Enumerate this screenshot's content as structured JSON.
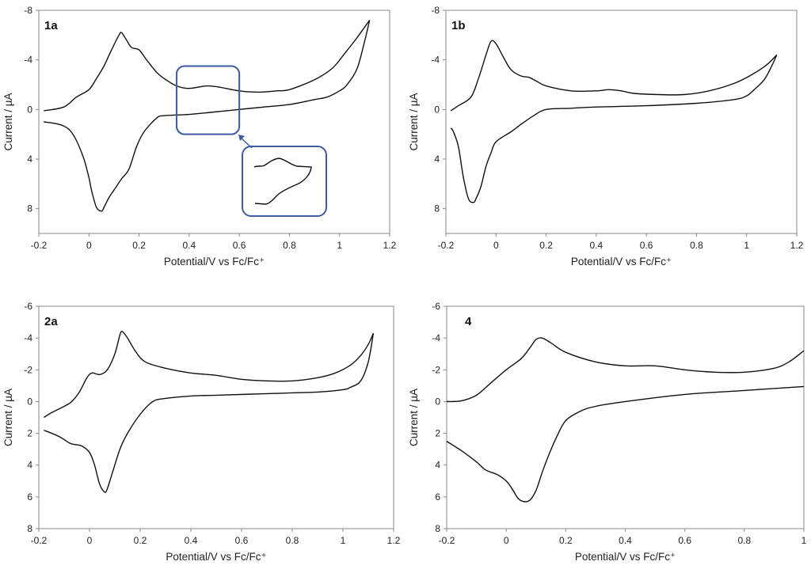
{
  "chart_data": [
    {
      "type": "line",
      "panel_label": "1a",
      "xlabel": "Potential/V vs  Fc/Fc⁺",
      "ylabel": "Current / µA",
      "xlim": [
        -0.2,
        1.2
      ],
      "ylim": [
        -8,
        10
      ],
      "y_inverted": true,
      "xticks": [
        -0.2,
        0,
        0.2,
        0.4,
        0.6,
        0.8,
        1,
        1.2
      ],
      "xtick_labels": [
        "-0.2",
        "0",
        "0.2",
        "0.4",
        "0.6",
        "0.8",
        "1",
        "1.2"
      ],
      "yticks": [
        -8,
        -4,
        0,
        4,
        8
      ],
      "ytick_labels": [
        "-8",
        "-4",
        "0",
        "4",
        "8"
      ],
      "grid": false,
      "inset": true,
      "annotation_color": "#3b5ba5",
      "series": [
        {
          "x": [
            -0.18,
            -0.1,
            -0.05,
            0,
            0.03,
            0.06,
            0.09,
            0.12,
            0.13,
            0.15,
            0.17,
            0.2,
            0.23,
            0.27,
            0.3,
            0.35,
            0.4,
            0.47,
            0.52,
            0.6,
            0.68,
            0.75,
            0.8,
            0.9,
            0.97,
            1.02,
            1.07,
            1.12
          ],
          "y": [
            0.1,
            -0.2,
            -1.0,
            -1.6,
            -2.5,
            -3.5,
            -4.8,
            -6.0,
            -6.2,
            -5.6,
            -5.0,
            -4.8,
            -4.0,
            -3.0,
            -2.5,
            -1.9,
            -1.7,
            -1.9,
            -1.8,
            -1.5,
            -1.4,
            -1.5,
            -1.6,
            -2.4,
            -3.3,
            -4.5,
            -5.8,
            -7.2
          ]
        },
        {
          "x": [
            1.12,
            1.1,
            1.07,
            1.03,
            1.0,
            0.95,
            0.9,
            0.8,
            0.7,
            0.6,
            0.5,
            0.4,
            0.3,
            0.27,
            0.22,
            0.19,
            0.16,
            0.13,
            0.1,
            0.08,
            0.06,
            0.05,
            0.03,
            0.01,
            0,
            -0.02,
            -0.05,
            -0.08,
            -0.12,
            -0.18
          ],
          "y": [
            -7.2,
            -5.5,
            -3.3,
            -2.0,
            -1.5,
            -1.0,
            -0.8,
            -0.4,
            -0.2,
            0,
            0.2,
            0.4,
            0.5,
            0.7,
            1.8,
            3.0,
            4.8,
            5.6,
            6.5,
            7.1,
            7.9,
            8.2,
            7.9,
            6.5,
            5.5,
            4.0,
            2.5,
            1.6,
            1.2,
            1.0
          ]
        }
      ]
    },
    {
      "type": "line",
      "panel_label": "1b",
      "xlabel": "Potential/V vs  Fc/Fc⁺",
      "ylabel": "Current / µA",
      "xlim": [
        -0.2,
        1.2
      ],
      "ylim": [
        -8,
        10
      ],
      "y_inverted": true,
      "xticks": [
        -0.2,
        0,
        0.2,
        0.4,
        0.6,
        0.8,
        1,
        1.2
      ],
      "xtick_labels": [
        "-0.2",
        "0",
        "0.2",
        "0.4",
        "0.6",
        "0.8",
        "1",
        "1.2"
      ],
      "yticks": [
        -8,
        -4,
        0,
        4,
        8
      ],
      "ytick_labels": [
        "-8",
        "-4",
        "0",
        "4",
        "8"
      ],
      "grid": false,
      "series": [
        {
          "x": [
            -0.18,
            -0.15,
            -0.1,
            -0.07,
            -0.04,
            -0.02,
            0,
            0.03,
            0.06,
            0.1,
            0.13,
            0.16,
            0.2,
            0.3,
            0.4,
            0.45,
            0.5,
            0.55,
            0.65,
            0.75,
            0.85,
            0.95,
            1.02,
            1.08,
            1.12
          ],
          "y": [
            0.1,
            -0.3,
            -1.0,
            -2.5,
            -4.4,
            -5.5,
            -5.3,
            -4.2,
            -3.2,
            -2.7,
            -2.6,
            -2.3,
            -1.9,
            -1.5,
            -1.5,
            -1.6,
            -1.5,
            -1.3,
            -1.2,
            -1.2,
            -1.5,
            -2.1,
            -2.8,
            -3.6,
            -4.4
          ]
        },
        {
          "x": [
            1.12,
            1.1,
            1.07,
            1.03,
            1.0,
            0.95,
            0.8,
            0.6,
            0.4,
            0.3,
            0.2,
            0.15,
            0.1,
            0.06,
            0,
            -0.02,
            -0.04,
            -0.06,
            -0.08,
            -0.09,
            -0.11,
            -0.13,
            -0.15,
            -0.17,
            -0.18
          ],
          "y": [
            -4.4,
            -3.5,
            -2.4,
            -1.6,
            -1.1,
            -0.8,
            -0.5,
            -0.3,
            -0.2,
            -0.1,
            0,
            0.5,
            1.2,
            1.8,
            2.6,
            3.5,
            4.6,
            6.2,
            7.2,
            7.5,
            7.2,
            5.5,
            3.0,
            1.8,
            1.5
          ]
        }
      ]
    },
    {
      "type": "line",
      "panel_label": "2a",
      "xlabel": "Potential/V vs  Fc/Fc⁺",
      "ylabel": "Current / µA",
      "xlim": [
        -0.2,
        1.2
      ],
      "ylim": [
        -6,
        8
      ],
      "y_inverted": true,
      "xticks": [
        -0.2,
        0,
        0.2,
        0.4,
        0.6,
        0.8,
        1,
        1.2
      ],
      "xtick_labels": [
        "-0.2",
        "0",
        "0.2",
        "0.4",
        "0.6",
        "0.8",
        "1",
        "1.2"
      ],
      "yticks": [
        -6,
        -4,
        -2,
        0,
        2,
        4,
        6,
        8
      ],
      "ytick_labels": [
        "-6",
        "-4",
        "-2",
        "0",
        "2",
        "4",
        "6",
        "8"
      ],
      "grid": false,
      "series": [
        {
          "x": [
            -0.18,
            -0.15,
            -0.1,
            -0.07,
            -0.04,
            -0.01,
            0.01,
            0.04,
            0.07,
            0.1,
            0.12,
            0.13,
            0.15,
            0.18,
            0.22,
            0.3,
            0.4,
            0.5,
            0.6,
            0.7,
            0.8,
            0.9,
            0.97,
            1.03,
            1.07,
            1.1,
            1.12
          ],
          "y": [
            1.0,
            0.7,
            0.3,
            0,
            -0.6,
            -1.5,
            -1.8,
            -1.7,
            -2.0,
            -3.0,
            -4.2,
            -4.4,
            -4.0,
            -3.2,
            -2.5,
            -2.1,
            -1.8,
            -1.65,
            -1.4,
            -1.3,
            -1.3,
            -1.5,
            -1.8,
            -2.3,
            -2.9,
            -3.6,
            -4.3
          ]
        },
        {
          "x": [
            1.12,
            1.1,
            1.07,
            1.03,
            1.0,
            0.9,
            0.7,
            0.5,
            0.4,
            0.3,
            0.25,
            0.2,
            0.15,
            0.12,
            0.09,
            0.07,
            0.06,
            0.04,
            0.02,
            0,
            -0.03,
            -0.06,
            -0.08,
            -0.12,
            -0.18
          ],
          "y": [
            -4.3,
            -2.5,
            -1.3,
            -0.9,
            -0.75,
            -0.6,
            -0.5,
            -0.4,
            -0.35,
            -0.2,
            0,
            0.8,
            2.0,
            3.0,
            4.5,
            5.5,
            5.7,
            5.2,
            4.0,
            3.2,
            2.8,
            2.7,
            2.6,
            2.2,
            1.8
          ]
        }
      ]
    },
    {
      "type": "line",
      "panel_label": "4",
      "xlabel": "Potential/V vs  Fc/Fc⁺",
      "ylabel": "Current / µA",
      "xlim": [
        -0.2,
        1.0
      ],
      "ylim": [
        -6,
        8
      ],
      "y_inverted": true,
      "xticks": [
        -0.2,
        0,
        0.2,
        0.4,
        0.6,
        0.8,
        1
      ],
      "xtick_labels": [
        "-0.2",
        "0",
        "0.2",
        "0.4",
        "0.6",
        "0.8",
        "1"
      ],
      "yticks": [
        -6,
        -4,
        -2,
        0,
        2,
        4,
        6,
        8
      ],
      "ytick_labels": [
        "-6",
        "-4",
        "-2",
        "0",
        "2",
        "4",
        "6",
        "8"
      ],
      "grid": false,
      "series": [
        {
          "x": [
            -0.2,
            -0.15,
            -0.1,
            -0.05,
            0,
            0.05,
            0.08,
            0.1,
            0.12,
            0.15,
            0.2,
            0.3,
            0.4,
            0.5,
            0.6,
            0.7,
            0.8,
            0.9,
            0.95,
            1.0
          ],
          "y": [
            0,
            -0.05,
            -0.4,
            -1.2,
            -2.0,
            -2.7,
            -3.4,
            -3.9,
            -4.0,
            -3.7,
            -3.1,
            -2.5,
            -2.25,
            -2.25,
            -2.0,
            -1.85,
            -1.85,
            -2.1,
            -2.5,
            -3.2
          ]
        },
        {
          "x": [
            1.0,
            0.8,
            0.6,
            0.4,
            0.3,
            0.25,
            0.2,
            0.17,
            0.14,
            0.12,
            0.1,
            0.08,
            0.06,
            0.04,
            0.02,
            0,
            -0.03,
            -0.07,
            -0.1,
            -0.15,
            -0.2
          ],
          "y": [
            -0.95,
            -0.7,
            -0.45,
            0,
            0.3,
            0.6,
            1.2,
            2.2,
            3.5,
            4.5,
            5.6,
            6.2,
            6.3,
            6.1,
            5.5,
            5.0,
            4.6,
            4.3,
            3.8,
            3.1,
            2.5
          ]
        }
      ]
    }
  ]
}
